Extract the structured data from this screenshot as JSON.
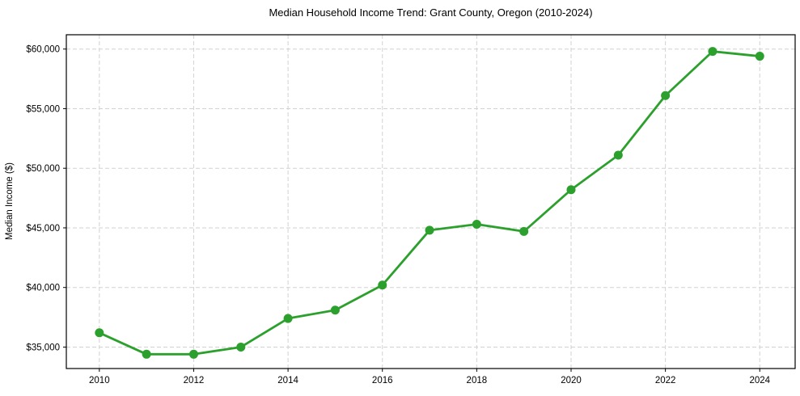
{
  "chart_data": {
    "type": "line",
    "title": "Median Household Income Trend: Grant County, Oregon (2010-2024)",
    "ylabel": "Median Income ($)",
    "xlabel": "",
    "series_name": "Median household income",
    "x": [
      2010,
      2011,
      2012,
      2013,
      2014,
      2015,
      2016,
      2017,
      2018,
      2019,
      2020,
      2021,
      2022,
      2023,
      2024
    ],
    "values": [
      36200,
      34400,
      34400,
      35000,
      37400,
      38100,
      40200,
      44800,
      45300,
      44700,
      48200,
      51100,
      56100,
      59800,
      59400
    ],
    "x_ticks": [
      2010,
      2012,
      2014,
      2016,
      2018,
      2020,
      2022,
      2024
    ],
    "x_tick_labels": [
      "2010",
      "2012",
      "2014",
      "2016",
      "2018",
      "2020",
      "2022",
      "2024"
    ],
    "y_ticks": [
      35000,
      40000,
      45000,
      50000,
      55000,
      60000
    ],
    "y_tick_labels": [
      "$35,000",
      "$40,000",
      "$45,000",
      "$50,000",
      "$55,000",
      "$60,000"
    ],
    "xlim": [
      2009.3,
      2024.75
    ],
    "ylim": [
      33200,
      61200
    ],
    "grid": true,
    "grid_style": "dashed",
    "legend": "none",
    "marker": "circle",
    "line_color": "#2ca02c",
    "grid_color": "#d2d2d2",
    "axis_color": "#000000",
    "background": "#ffffff"
  }
}
